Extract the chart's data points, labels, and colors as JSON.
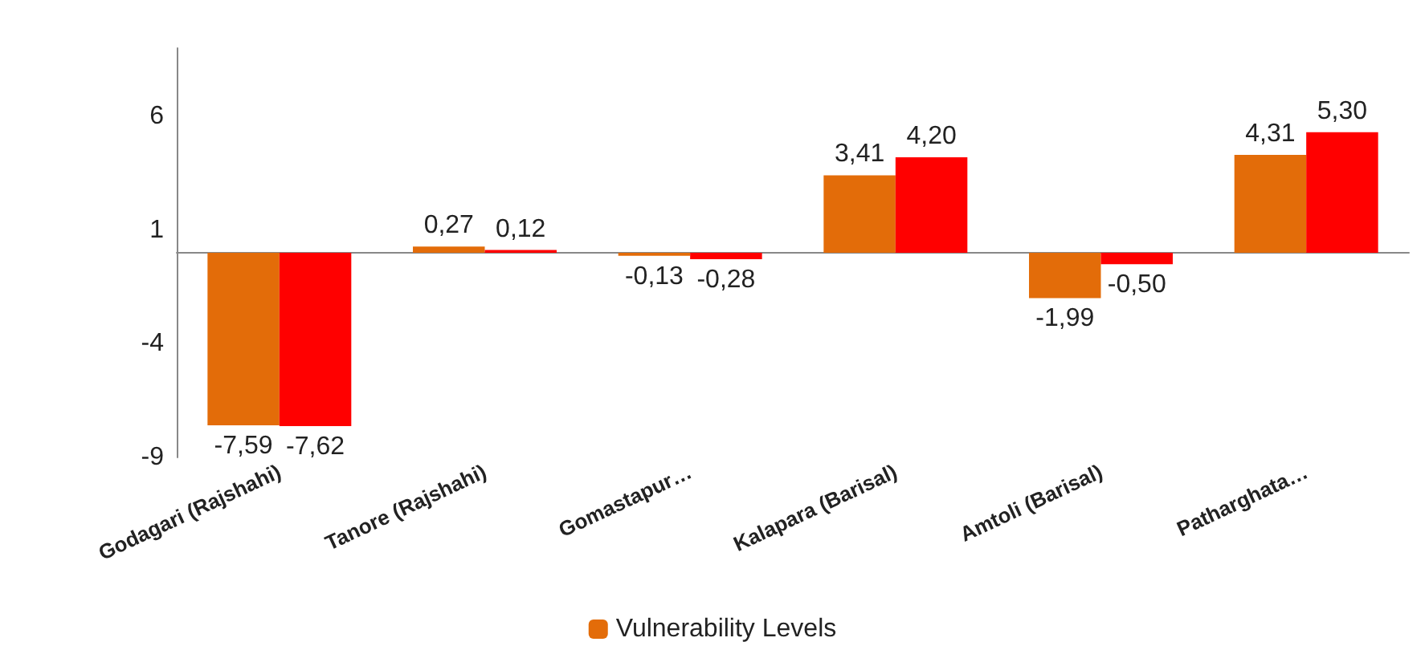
{
  "chart_data": {
    "type": "bar",
    "categories": [
      "Godagari (Rajshahi)",
      "Tanore (Rajshahi)",
      "Gomastapur…",
      "Kalapara (Barisal)",
      "Amtoli (Barisal)",
      "Patharghata…"
    ],
    "series": [
      {
        "name": "Vulnerability Levels",
        "color": "#e36c09",
        "values": [
          -7.59,
          0.27,
          -0.13,
          3.41,
          -1.99,
          4.31
        ],
        "value_labels": [
          "-7,59",
          "0,27",
          "-0,13",
          "3,41",
          "-1,99",
          "4,31"
        ]
      },
      {
        "color": "#ff0000",
        "values": [
          -7.62,
          0.12,
          -0.28,
          4.2,
          -0.5,
          5.3
        ],
        "value_labels": [
          "-7,62",
          "0,12",
          "-0,28",
          "4,20",
          "-0,50",
          "5,30"
        ]
      }
    ],
    "ylim": [
      -9,
      9
    ],
    "yticks": [
      -9,
      -4,
      1,
      6
    ],
    "grid": false,
    "legend": "bottom"
  }
}
